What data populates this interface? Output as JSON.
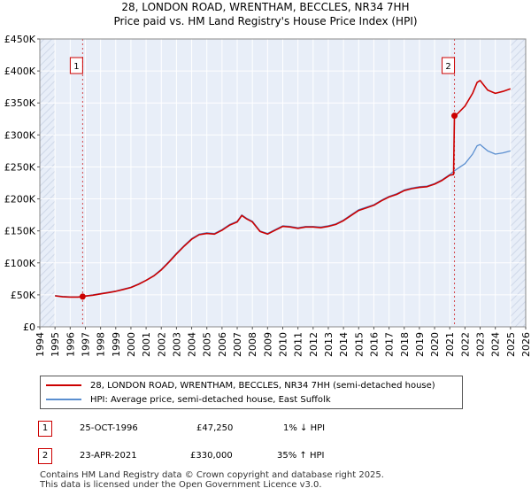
{
  "title_line1": "28, LONDON ROAD, WRENTHAM, BECCLES, NR34 7HH",
  "title_line2": "Price paid vs. HM Land Registry's House Price Index (HPI)",
  "colors": {
    "property": "#cc0000",
    "hpi": "#5b8fd0",
    "plot_bg": "#e8eef8",
    "hatch": "#cfd8e8"
  },
  "legend": {
    "property": "28, LONDON ROAD, WRENTHAM, BECCLES, NR34 7HH (semi-detached house)",
    "hpi": "HPI: Average price, semi-detached house, East Suffolk"
  },
  "transactions": [
    {
      "num": "1",
      "date": "25-OCT-1996",
      "price": "£47,250",
      "hpi_diff": "1% ↓ HPI"
    },
    {
      "num": "2",
      "date": "23-APR-2021",
      "price": "£330,000",
      "hpi_diff": "35% ↑ HPI"
    }
  ],
  "footer": {
    "line1": "Contains HM Land Registry data © Crown copyright and database right 2025.",
    "line2": "This data is licensed under the Open Government Licence v3.0."
  },
  "chart_data": {
    "type": "line",
    "title": "28, LONDON ROAD, WRENTHAM, BECCLES, NR34 7HH — Price paid vs. HM Land Registry's House Price Index (HPI)",
    "xlim": [
      1994,
      2026
    ],
    "ylim": [
      0,
      450000
    ],
    "x_ticks": [
      1994,
      1995,
      1996,
      1997,
      1998,
      1999,
      2000,
      2001,
      2002,
      2003,
      2004,
      2005,
      2006,
      2007,
      2008,
      2009,
      2010,
      2011,
      2012,
      2013,
      2014,
      2015,
      2016,
      2017,
      2018,
      2019,
      2020,
      2021,
      2022,
      2023,
      2024,
      2025,
      2026
    ],
    "y_ticks": [
      {
        "value": 0,
        "label": "£0"
      },
      {
        "value": 50000,
        "label": "£50K"
      },
      {
        "value": 100000,
        "label": "£100K"
      },
      {
        "value": 150000,
        "label": "£150K"
      },
      {
        "value": 200000,
        "label": "£200K"
      },
      {
        "value": 250000,
        "label": "£250K"
      },
      {
        "value": 300000,
        "label": "£300K"
      },
      {
        "value": 350000,
        "label": "£350K"
      },
      {
        "value": 400000,
        "label": "£400K"
      },
      {
        "value": 450000,
        "label": "£450K"
      }
    ],
    "hatched_ranges": [
      [
        1994,
        1995
      ],
      [
        2025.0,
        2026
      ]
    ],
    "sales": [
      {
        "label": "1",
        "x": 1996.82,
        "y": 47250
      },
      {
        "label": "2",
        "x": 2021.31,
        "y": 330000
      }
    ],
    "series": [
      {
        "name": "HPI: Average price, semi-detached house, East Suffolk",
        "color": "#5b8fd0",
        "x": [
          1995.0,
          1995.5,
          1996.0,
          1996.5,
          1996.82,
          1997.0,
          1997.5,
          1998.0,
          1998.5,
          1999.0,
          1999.5,
          2000.0,
          2000.5,
          2001.0,
          2001.5,
          2002.0,
          2002.5,
          2003.0,
          2003.5,
          2004.0,
          2004.5,
          2005.0,
          2005.5,
          2006.0,
          2006.5,
          2007.0,
          2007.3,
          2007.6,
          2008.0,
          2008.5,
          2009.0,
          2009.5,
          2010.0,
          2010.5,
          2011.0,
          2011.5,
          2012.0,
          2012.5,
          2013.0,
          2013.5,
          2014.0,
          2014.5,
          2015.0,
          2015.5,
          2016.0,
          2016.5,
          2017.0,
          2017.5,
          2018.0,
          2018.5,
          2019.0,
          2019.5,
          2020.0,
          2020.5,
          2021.0,
          2021.31,
          2021.5,
          2022.0,
          2022.5,
          2022.8,
          2023.0,
          2023.5,
          2024.0,
          2024.5,
          2025.0
        ],
        "y": [
          49000,
          47500,
          47000,
          47000,
          47700,
          48500,
          50000,
          52000,
          54000,
          56000,
          59000,
          62000,
          67000,
          73000,
          80000,
          90000,
          102000,
          115000,
          127000,
          138000,
          145000,
          147000,
          146000,
          152000,
          160000,
          165000,
          175000,
          170000,
          165000,
          150000,
          146000,
          152000,
          158000,
          157000,
          155000,
          157000,
          157000,
          156000,
          158000,
          161000,
          167000,
          175000,
          183000,
          187000,
          191000,
          198000,
          204000,
          208000,
          214000,
          217000,
          219000,
          220000,
          224000,
          230000,
          238000,
          244000,
          247000,
          255000,
          270000,
          283000,
          285000,
          275000,
          270000,
          272000,
          275000
        ]
      },
      {
        "name": "28, LONDON ROAD, WRENTHAM, BECCLES, NR34 7HH (semi-detached house)",
        "color": "#cc0000",
        "x": [
          1995.0,
          1995.5,
          1996.0,
          1996.5,
          1996.82,
          1997.0,
          1997.5,
          1998.0,
          1998.5,
          1999.0,
          1999.5,
          2000.0,
          2000.5,
          2001.0,
          2001.5,
          2002.0,
          2002.5,
          2003.0,
          2003.5,
          2004.0,
          2004.5,
          2005.0,
          2005.5,
          2006.0,
          2006.5,
          2007.0,
          2007.3,
          2007.6,
          2008.0,
          2008.5,
          2009.0,
          2009.5,
          2010.0,
          2010.5,
          2011.0,
          2011.5,
          2012.0,
          2012.5,
          2013.0,
          2013.5,
          2014.0,
          2014.5,
          2015.0,
          2015.5,
          2016.0,
          2016.5,
          2017.0,
          2017.5,
          2018.0,
          2018.5,
          2019.0,
          2019.5,
          2020.0,
          2020.5,
          2021.0,
          2021.25,
          2021.31,
          2021.5,
          2022.0,
          2022.5,
          2022.8,
          2023.0,
          2023.5,
          2024.0,
          2024.5,
          2025.0
        ],
        "y": [
          48500,
          47000,
          46500,
          46500,
          47250,
          48000,
          49500,
          51500,
          53500,
          55500,
          58500,
          61500,
          66500,
          72500,
          79500,
          89000,
          101000,
          114000,
          126000,
          137000,
          144000,
          146000,
          145000,
          151000,
          159000,
          164000,
          174000,
          169000,
          164000,
          149000,
          145000,
          151000,
          157000,
          156000,
          154000,
          156000,
          156000,
          155000,
          157000,
          160000,
          166000,
          174000,
          182000,
          186000,
          190000,
          197000,
          203000,
          207000,
          213000,
          216000,
          218000,
          219000,
          223000,
          229000,
          237000,
          238000,
          330000,
          333000,
          345000,
          365000,
          382000,
          385000,
          370000,
          365000,
          368000,
          372000
        ]
      }
    ]
  }
}
